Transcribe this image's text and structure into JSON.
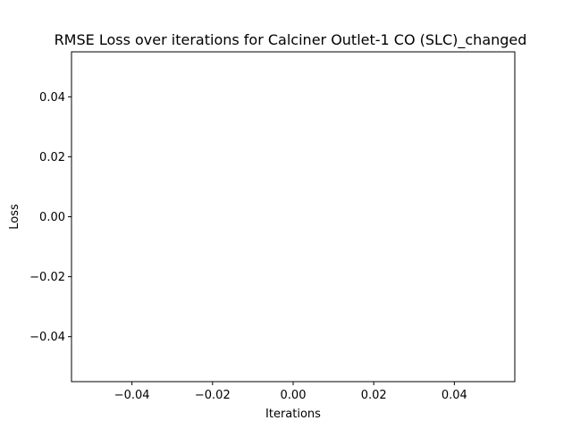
{
  "chart_data": {
    "type": "line",
    "title": "RMSE Loss over iterations for Calciner Outlet-1 CO (SLC)_changed",
    "xlabel": "Iterations",
    "ylabel": "Loss",
    "xlim": [
      -0.055,
      0.055
    ],
    "ylim": [
      -0.055,
      0.055
    ],
    "xticks": [
      -0.04,
      -0.02,
      0.0,
      0.02,
      0.04
    ],
    "xtick_labels": [
      "−0.04",
      "−0.02",
      "0.00",
      "0.02",
      "0.04"
    ],
    "yticks": [
      -0.04,
      -0.02,
      0.0,
      0.02,
      0.04
    ],
    "ytick_labels": [
      "−0.04",
      "−0.02",
      "0.00",
      "0.02",
      "0.04"
    ],
    "grid": false,
    "series": [
      {
        "values": [],
        "x": [],
        "color": "#1f77b4"
      }
    ]
  }
}
